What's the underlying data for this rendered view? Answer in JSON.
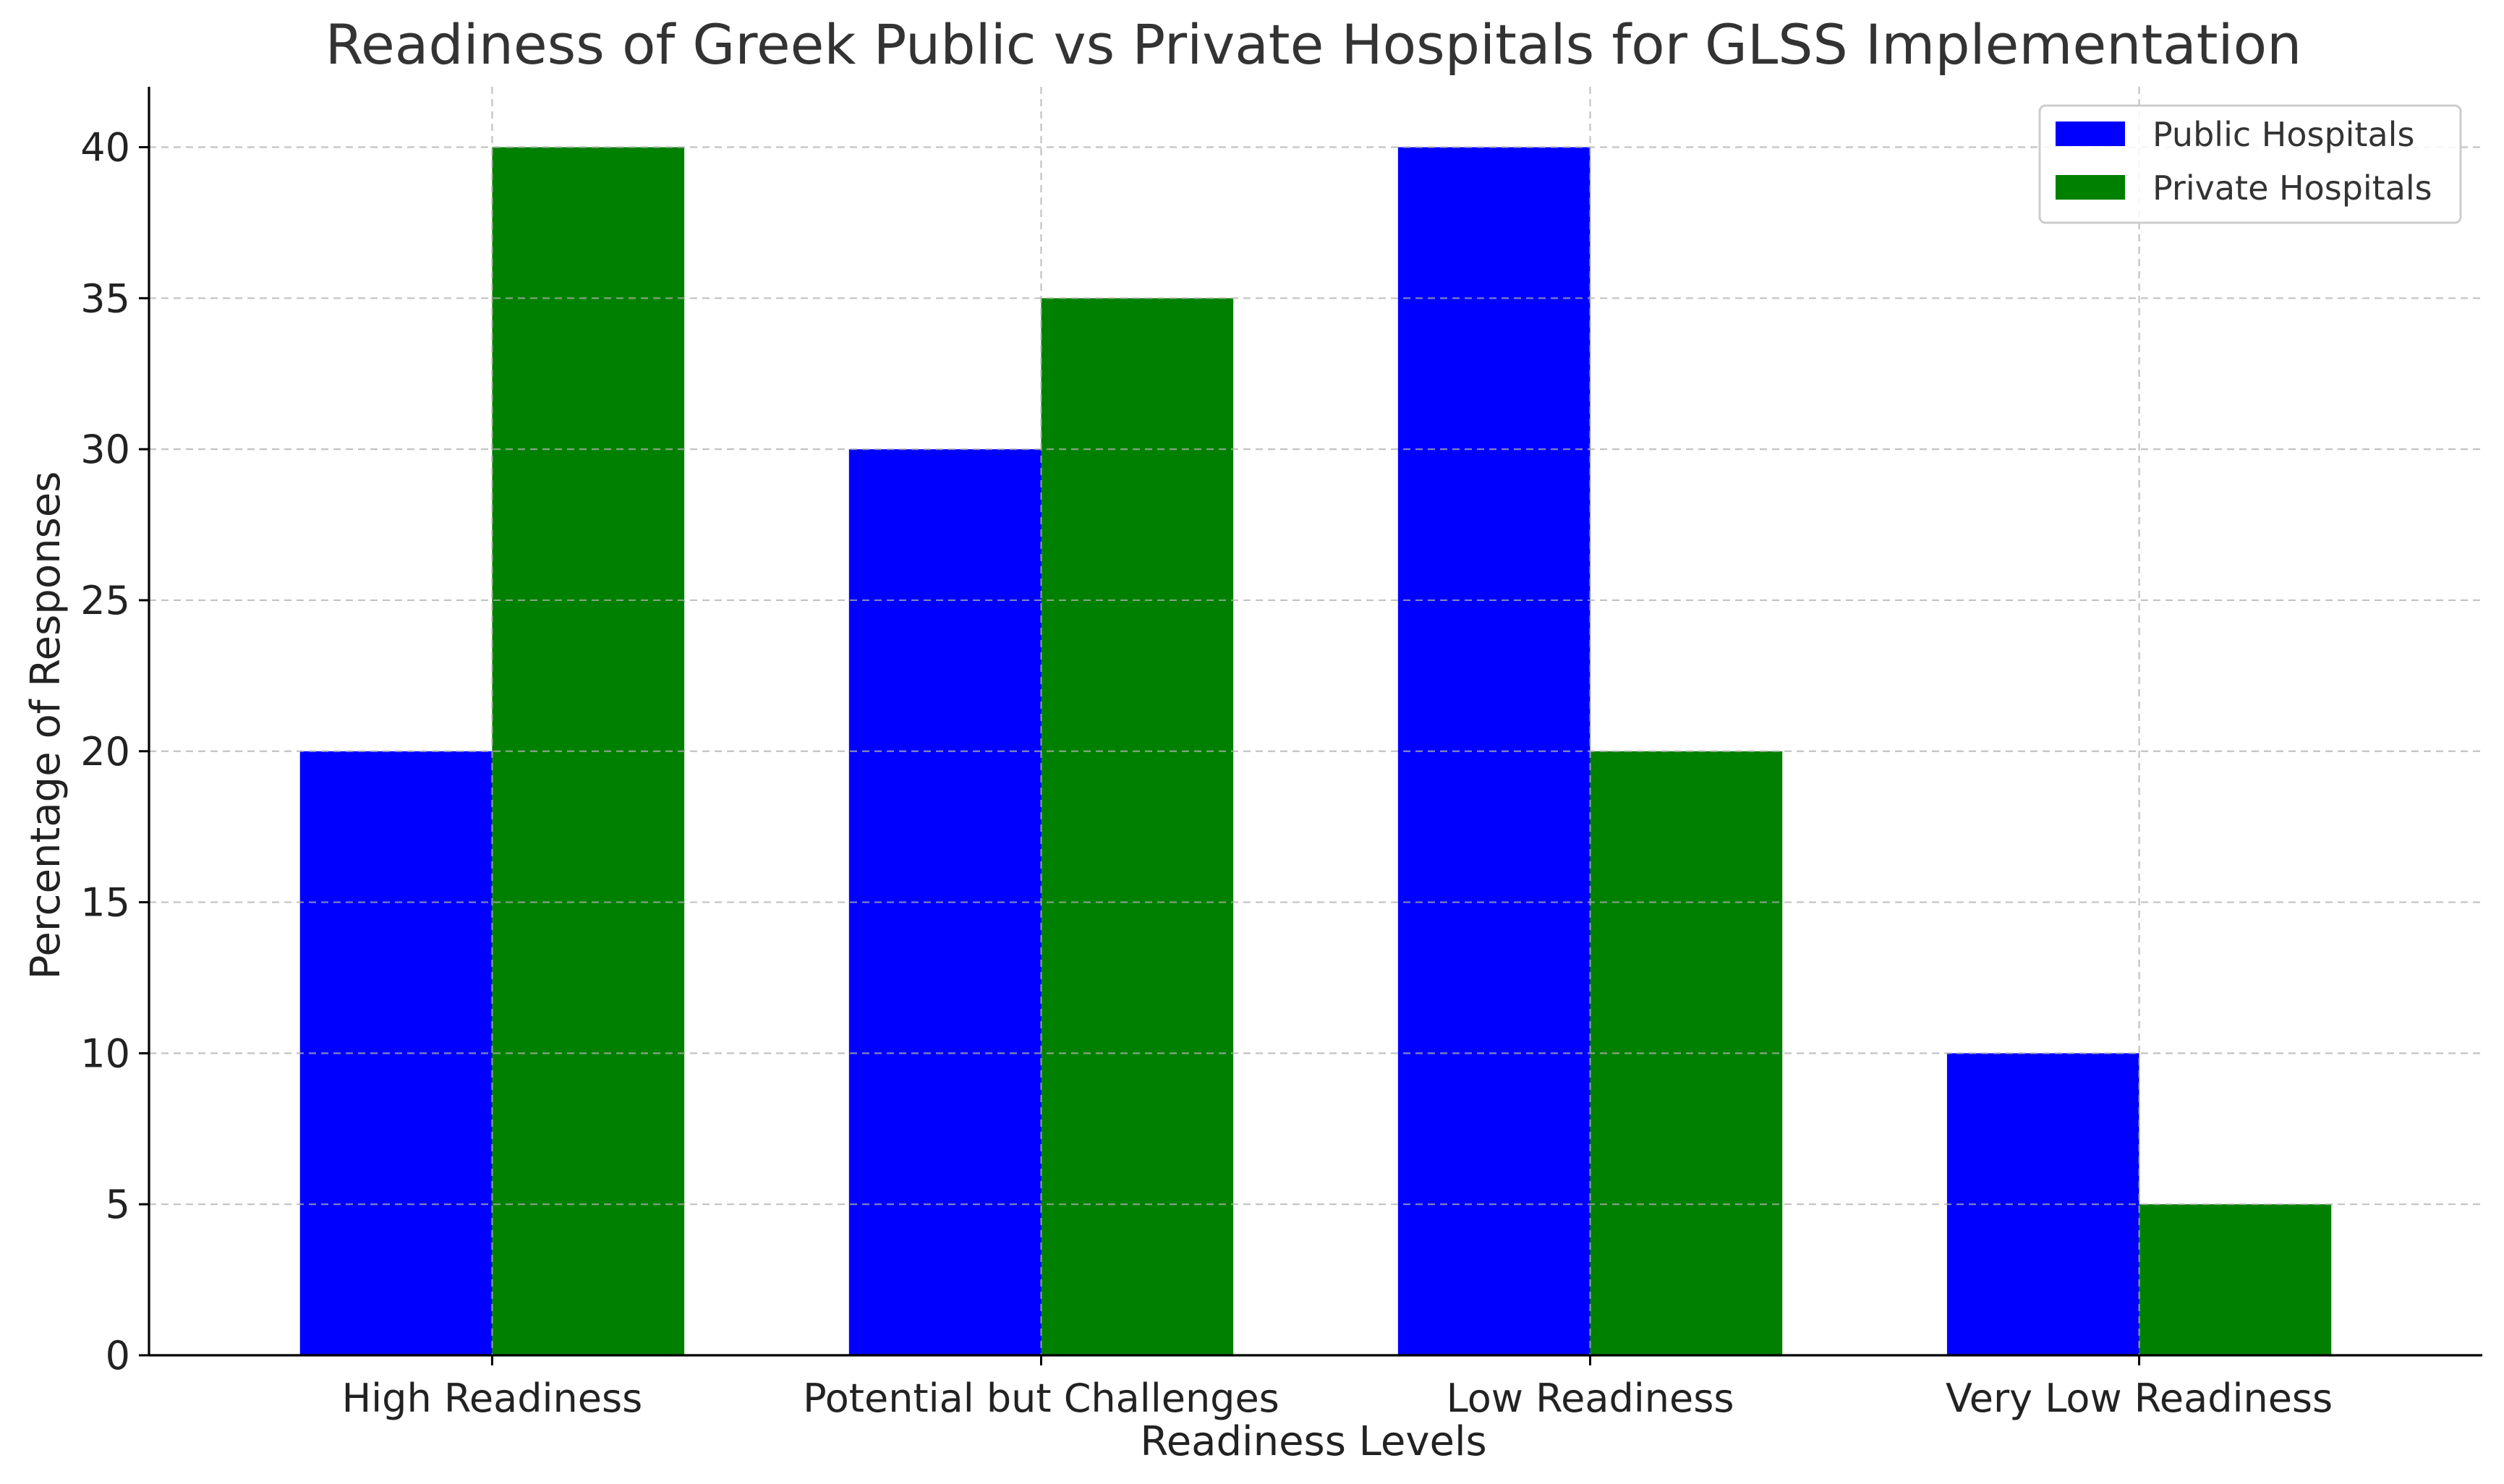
{
  "chart_data": {
    "type": "bar",
    "title": "Readiness of Greek Public vs Private Hospitals for GLSS Implementation",
    "xlabel": "Readiness Levels",
    "ylabel": "Percentage of Responses",
    "categories": [
      "High Readiness",
      "Potential but Challenges",
      "Low Readiness",
      "Very Low Readiness"
    ],
    "series": [
      {
        "name": "Public Hospitals",
        "color": "#0000ff",
        "values": [
          20,
          30,
          40,
          10
        ]
      },
      {
        "name": "Private Hospitals",
        "color": "#008000",
        "values": [
          40,
          35,
          20,
          5
        ]
      }
    ],
    "ylim": [
      0,
      42
    ],
    "yticks": [
      0,
      5,
      10,
      15,
      20,
      25,
      30,
      35,
      40
    ],
    "grid": true,
    "legend_position": "top-right"
  }
}
